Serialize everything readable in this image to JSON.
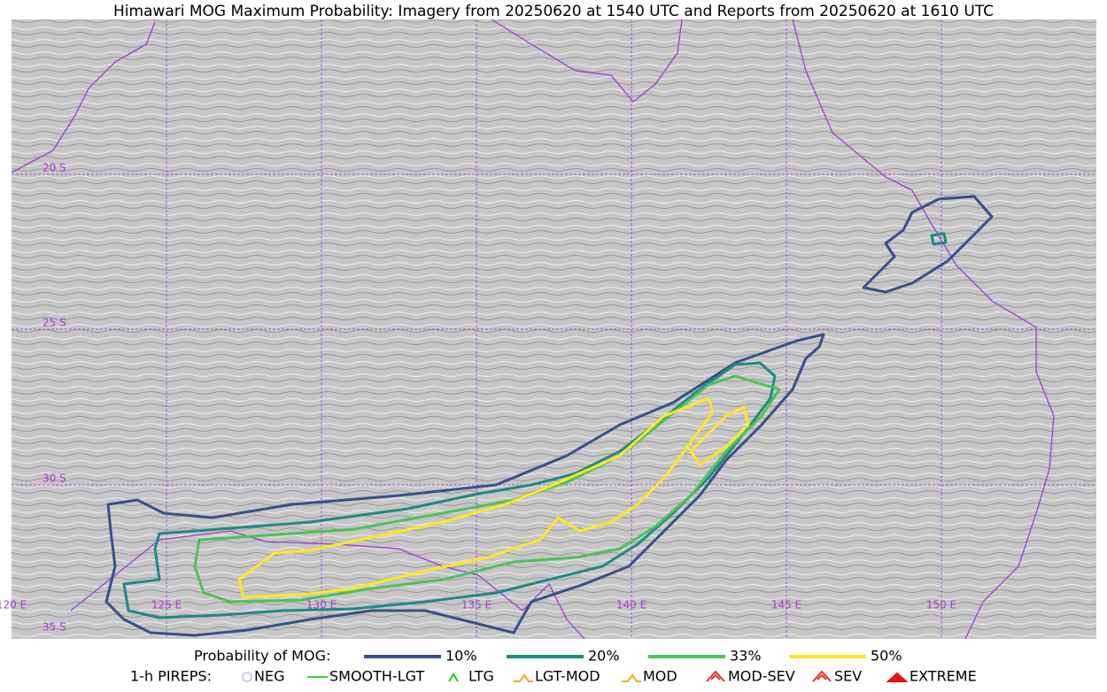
{
  "header": {
    "title": "Himawari MOG Maximum Probability: Imagery from 20250620 at 1540 UTC and Reports from 20250620 at 1610 UTC"
  },
  "map": {
    "latitude_labels": [
      "20 S",
      "25 S",
      "30 S",
      "35 S"
    ],
    "longitude_labels": [
      "120 E",
      "125 E",
      "130 E",
      "135 E",
      "140 E",
      "145 E",
      "150 E"
    ]
  },
  "legend": {
    "probability_title": "Probability of MOG:",
    "probability_items": [
      {
        "label": "10%",
        "color": "#3a4f8a"
      },
      {
        "label": "20%",
        "color": "#1f8a80"
      },
      {
        "label": "33%",
        "color": "#4cc25a"
      },
      {
        "label": "50%",
        "color": "#fde725"
      }
    ],
    "pirep_title": "1-h PIREPS:",
    "pirep_items": [
      {
        "label": "NEG",
        "color": "#c8c8f8"
      },
      {
        "label": "SMOOTH-LGT",
        "color": "#3ad13a"
      },
      {
        "label": "LTG",
        "color": "#22cc22"
      },
      {
        "label": "LGT-MOD",
        "color": "#f5a623"
      },
      {
        "label": "MOD",
        "color": "#f5a623"
      },
      {
        "label": "MOD-SEV",
        "color": "#e8322a"
      },
      {
        "label": "SEV",
        "color": "#e8322a"
      },
      {
        "label": "EXTREME",
        "color": "#e81010"
      }
    ]
  }
}
